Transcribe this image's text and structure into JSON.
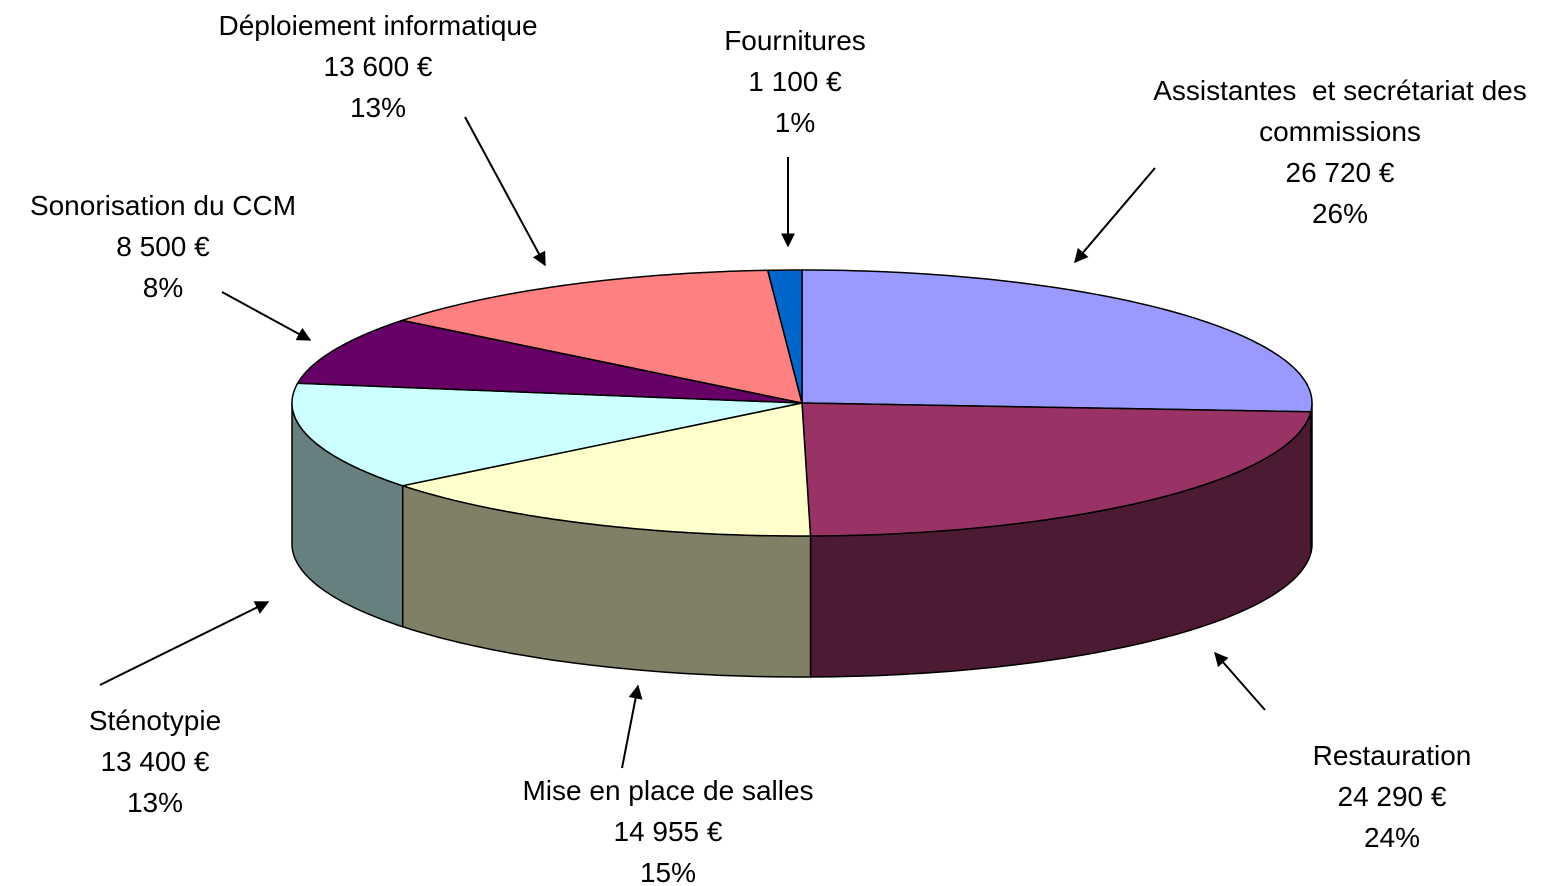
{
  "chart_data": {
    "type": "pie3d",
    "categories": [
      "Assistantes  et secrétariat des\ncommissions",
      "Restauration",
      "Mise en place de salles",
      "Sténotypie",
      "Sonorisation du CCM",
      "Déploiement informatique",
      "Fournitures"
    ],
    "values": [
      26720,
      24290,
      14955,
      13400,
      8500,
      13600,
      1100
    ],
    "value_labels": [
      "26 720 €",
      "24 290 €",
      "14 955 €",
      "13 400 €",
      "8 500 €",
      "13 600 €",
      "1 100 €"
    ],
    "percent_labels": [
      "26%",
      "24%",
      "15%",
      "13%",
      "8%",
      "13%",
      "1%"
    ],
    "colors": [
      "#9999ff",
      "#993366",
      "#ffffcc",
      "#ccffff",
      "#660066",
      "#ff8080",
      "#0066cc"
    ]
  }
}
